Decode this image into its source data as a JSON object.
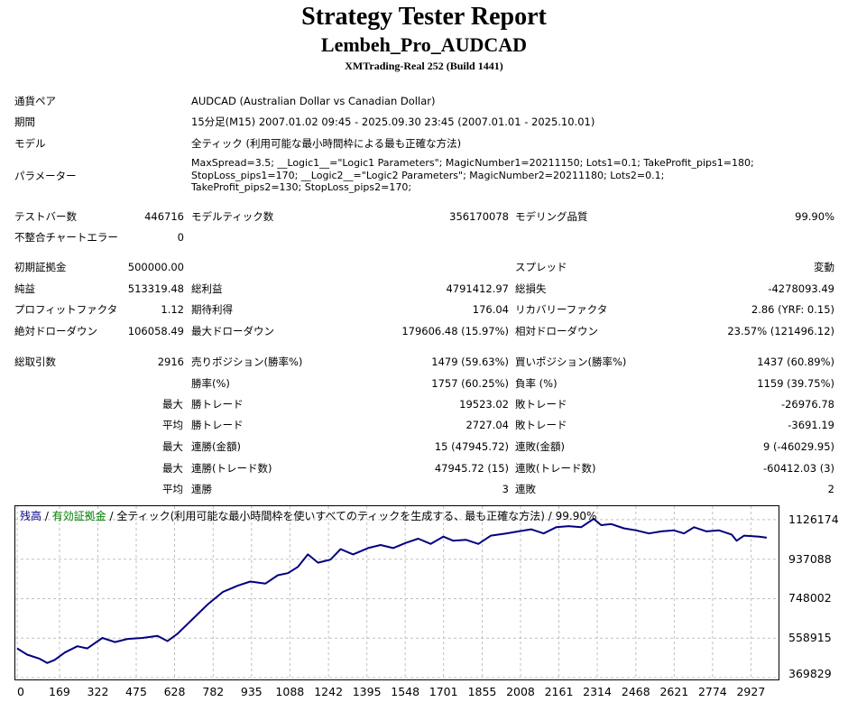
{
  "report": {
    "title": "Strategy Tester Report",
    "ea_name": "Lembeh_Pro_AUDCAD",
    "server": "XMTrading-Real 252 (Build 1441)"
  },
  "info": {
    "pair_label": "通貨ペア",
    "pair_value": "AUDCAD (Australian Dollar vs Canadian Dollar)",
    "period_label": "期間",
    "period_value": "15分足(M15) 2007.01.02 09:45 - 2025.09.30 23:45 (2007.01.01 - 2025.10.01)",
    "model_label": "モデル",
    "model_value": "全ティック (利用可能な最小時間枠による最も正確な方法)",
    "params_label": "パラメーター",
    "params_value": "MaxSpread=3.5; __Logic1__=\"Logic1 Parameters\"; MagicNumber1=20211150; Lots1=0.1; TakeProfit_pips1=180; StopLoss_pips1=170; __Logic2__=\"Logic2 Parameters\"; MagicNumber2=20211180; Lots2=0.1; TakeProfit_pips2=130; StopLoss_pips2=170;"
  },
  "stats": {
    "bars_label": "テストバー数",
    "bars": "446716",
    "ticks_label": "モデルティック数",
    "ticks": "356170078",
    "quality_label": "モデリング品質",
    "quality": "99.90%",
    "mismatch_label": "不整合チャートエラー",
    "mismatch": "0",
    "deposit_label": "初期証拠金",
    "deposit": "500000.00",
    "spread_label": "スプレッド",
    "spread": "変動",
    "net_label": "純益",
    "net": "513319.48",
    "gross_profit_label": "総利益",
    "gross_profit": "4791412.97",
    "gross_loss_label": "総損失",
    "gross_loss": "-4278093.49",
    "pf_label": "プロフィットファクタ",
    "pf": "1.12",
    "expected_label": "期待利得",
    "expected": "176.04",
    "recovery_label": "リカバリーファクタ",
    "recovery": "2.86 (YRF: 0.15)",
    "abs_dd_label": "絶対ドローダウン",
    "abs_dd": "106058.49",
    "max_dd_label": "最大ドローダウン",
    "max_dd": "179606.48 (15.97%)",
    "rel_dd_label": "相対ドローダウン",
    "rel_dd": "23.57% (121496.12)",
    "trades_label": "総取引数",
    "trades": "2916",
    "short_label": "売りポジション(勝率%)",
    "short": "1479 (59.63%)",
    "long_label": "買いポジション(勝率%)",
    "long": "1437 (60.89%)",
    "winrate_label": "勝率(%)",
    "winrate": "1757 (60.25%)",
    "lossrate_label": "負率 (%)",
    "lossrate": "1159 (39.75%)",
    "max_word": "最大",
    "avg_word": "平均",
    "win_trade_label": "勝トレード",
    "loss_trade_label": "敗トレード",
    "largest_win": "19523.02",
    "largest_loss": "-26976.78",
    "avg_win": "2727.04",
    "avg_loss": "-3691.19",
    "cons_wins_amount_label": "連勝(金額)",
    "cons_wins_amount": "15 (47945.72)",
    "cons_losses_amount_label": "連敗(金額)",
    "cons_losses_amount": "9 (-46029.95)",
    "cons_wins_count_label": "連勝(トレード数)",
    "cons_wins_count": "47945.72 (15)",
    "cons_losses_count_label": "連敗(トレード数)",
    "cons_losses_count": "-60412.03 (3)",
    "avg_cons_wins_label": "連勝",
    "avg_cons_wins": "3",
    "avg_cons_losses_label": "連敗",
    "avg_cons_losses": "2"
  },
  "chart_data": {
    "type": "line",
    "legend": {
      "balance": "残高",
      "sep1": " / ",
      "equity": "有効証拠金",
      "sep2": " / ",
      "desc": "全ティック(利用可能な最小時間枠を使いすべてのティックを生成する、最も正確な方法) / 99.90%"
    },
    "colors": {
      "balance": "#000080",
      "equity": "#008000",
      "grid": "#c0c0c0"
    },
    "ylim": [
      369829,
      1182000
    ],
    "xlim": [
      0,
      3030
    ],
    "y_ticks": [
      1126174,
      937088,
      748002,
      558915,
      369829
    ],
    "x_ticks": [
      0,
      169,
      322,
      475,
      628,
      782,
      935,
      1088,
      1242,
      1395,
      1548,
      1701,
      1855,
      2008,
      2161,
      2314,
      2468,
      2621,
      2774,
      2927
    ],
    "series": [
      {
        "name": "残高",
        "x": [
          0,
          40,
          90,
          120,
          150,
          190,
          240,
          280,
          340,
          390,
          440,
          500,
          560,
          600,
          640,
          700,
          760,
          820,
          880,
          930,
          990,
          1040,
          1080,
          1120,
          1160,
          1200,
          1250,
          1290,
          1340,
          1400,
          1450,
          1500,
          1550,
          1600,
          1650,
          1700,
          1740,
          1790,
          1840,
          1890,
          1950,
          2000,
          2050,
          2100,
          2150,
          2200,
          2250,
          2300,
          2330,
          2370,
          2420,
          2470,
          2520,
          2570,
          2620,
          2660,
          2700,
          2750,
          2800,
          2850,
          2870,
          2900,
          2960,
          2990
        ],
        "y": [
          510000,
          480000,
          460000,
          440000,
          455000,
          490000,
          520000,
          510000,
          560000,
          540000,
          555000,
          560000,
          570000,
          545000,
          580000,
          650000,
          720000,
          780000,
          810000,
          830000,
          820000,
          860000,
          870000,
          900000,
          960000,
          920000,
          935000,
          985000,
          960000,
          990000,
          1005000,
          990000,
          1015000,
          1035000,
          1010000,
          1045000,
          1025000,
          1030000,
          1010000,
          1050000,
          1060000,
          1070000,
          1080000,
          1060000,
          1090000,
          1095000,
          1090000,
          1130000,
          1100000,
          1105000,
          1085000,
          1075000,
          1060000,
          1070000,
          1075000,
          1060000,
          1090000,
          1070000,
          1075000,
          1055000,
          1025000,
          1050000,
          1045000,
          1040000
        ]
      }
    ]
  }
}
